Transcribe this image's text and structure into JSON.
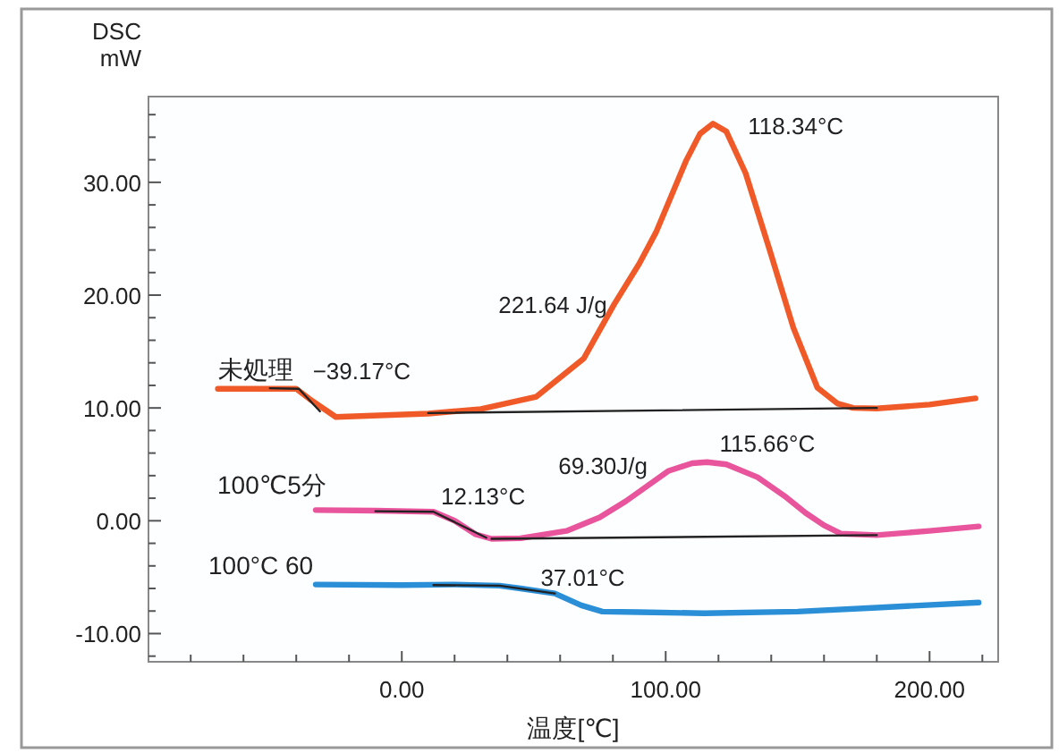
{
  "chart_data": {
    "type": "line",
    "xlabel": "温度[℃]",
    "ylabel": "DSC\nmW",
    "xlim": [
      -96,
      226
    ],
    "ylim": [
      -12.5,
      37.6
    ],
    "xticks": [
      {
        "value": -80,
        "label": null
      },
      {
        "value": -60,
        "label": null
      },
      {
        "value": -40,
        "label": null
      },
      {
        "value": -20,
        "label": null
      },
      {
        "value": 0,
        "label": "0.00"
      },
      {
        "value": 20,
        "label": null
      },
      {
        "value": 40,
        "label": null
      },
      {
        "value": 60,
        "label": null
      },
      {
        "value": 80,
        "label": null
      },
      {
        "value": 100,
        "label": "100.00"
      },
      {
        "value": 120,
        "label": null
      },
      {
        "value": 140,
        "label": null
      },
      {
        "value": 160,
        "label": null
      },
      {
        "value": 180,
        "label": null
      },
      {
        "value": 200,
        "label": "200.00"
      },
      {
        "value": 220,
        "label": null
      }
    ],
    "yticks": [
      {
        "value": -12,
        "label": null
      },
      {
        "value": -10,
        "label": "-10.00"
      },
      {
        "value": -8,
        "label": null
      },
      {
        "value": -6,
        "label": null
      },
      {
        "value": -4,
        "label": null
      },
      {
        "value": -2,
        "label": null
      },
      {
        "value": 0,
        "label": "0.00"
      },
      {
        "value": 2,
        "label": null
      },
      {
        "value": 4,
        "label": null
      },
      {
        "value": 6,
        "label": null
      },
      {
        "value": 8,
        "label": null
      },
      {
        "value": 10,
        "label": "10.00"
      },
      {
        "value": 12,
        "label": null
      },
      {
        "value": 14,
        "label": null
      },
      {
        "value": 16,
        "label": null
      },
      {
        "value": 18,
        "label": null
      },
      {
        "value": 20,
        "label": "20.00"
      },
      {
        "value": 22,
        "label": null
      },
      {
        "value": 24,
        "label": null
      },
      {
        "value": 26,
        "label": null
      },
      {
        "value": 28,
        "label": null
      },
      {
        "value": 30,
        "label": "30.00"
      },
      {
        "value": 32,
        "label": null
      },
      {
        "value": 34,
        "label": null
      },
      {
        "value": 36,
        "label": null
      }
    ],
    "series": [
      {
        "name": "未処理",
        "color": "#f05a28",
        "x": [
          -69.7,
          -40,
          -35,
          -25,
          10,
          30,
          51,
          69,
          80.5,
          90,
          96.4,
          107.7,
          113,
          117.9,
          123,
          130.3,
          139.4,
          148.4,
          157.5,
          165,
          171,
          180,
          200,
          217.4
        ],
        "values": [
          11.7,
          11.7,
          10.8,
          9.2,
          9.5,
          9.9,
          11.0,
          14.4,
          19.2,
          22.8,
          25.6,
          31.9,
          34.3,
          35.2,
          34.5,
          30.8,
          24.0,
          17.1,
          11.8,
          10.4,
          10.0,
          9.95,
          10.3,
          10.85
        ]
      },
      {
        "name": "100℃5分",
        "color": "#e8559c",
        "x": [
          -32.6,
          -10,
          12,
          20,
          28,
          34,
          45,
          62.4,
          75,
          85,
          100.9,
          110,
          115.66,
          123,
          134.8,
          145,
          153,
          160,
          166.5,
          180,
          200,
          218.6
        ],
        "values": [
          0.95,
          0.9,
          0.8,
          0.0,
          -1.2,
          -1.6,
          -1.55,
          -0.9,
          0.3,
          1.75,
          4.4,
          5.1,
          5.2,
          5.0,
          3.86,
          2.2,
          0.7,
          -0.4,
          -1.15,
          -1.27,
          -0.9,
          -0.5
        ]
      },
      {
        "name": "100°C 60",
        "color": "#2a8fd6",
        "x": [
          -32.6,
          0,
          20,
          37,
          45,
          58,
          68,
          76,
          90,
          114.5,
          150,
          180,
          218.6
        ],
        "values": [
          -5.65,
          -5.7,
          -5.65,
          -5.75,
          -6.0,
          -6.45,
          -7.5,
          -8.05,
          -8.1,
          -8.2,
          -8.05,
          -7.7,
          -7.25
        ]
      },
      {
        "color": "#222222",
        "x": [
          -50,
          -39,
          -31
        ],
        "values": [
          11.75,
          11.7,
          9.7
        ]
      },
      {
        "color": "#222222",
        "x": [
          10,
          180
        ],
        "values": [
          9.55,
          10.0
        ]
      },
      {
        "color": "#222222",
        "x": [
          -10,
          12,
          32
        ],
        "values": [
          0.85,
          0.8,
          -1.5
        ]
      },
      {
        "color": "#222222",
        "x": [
          34,
          180
        ],
        "values": [
          -1.6,
          -1.27
        ]
      },
      {
        "color": "#222222",
        "x": [
          12,
          37,
          58
        ],
        "values": [
          -5.7,
          -5.75,
          -6.45
        ]
      }
    ],
    "annotations": [
      {
        "text": "−39.17°C",
        "x": -39.17,
        "y": 11.0
      },
      {
        "text": "221.64 J/g",
        "x": 80.5,
        "y": 19.2
      },
      {
        "text": "118.34°C",
        "x": 118.34,
        "y": 35.2
      },
      {
        "text": "12.13°C",
        "x": 12.13,
        "y": 0.8
      },
      {
        "text": "69.30J/g",
        "x": 85,
        "y": 1.75
      },
      {
        "text": "115.66°C",
        "x": 115.66,
        "y": 5.2
      },
      {
        "text": "37.01°C",
        "x": 37.01,
        "y": -5.75
      }
    ]
  }
}
